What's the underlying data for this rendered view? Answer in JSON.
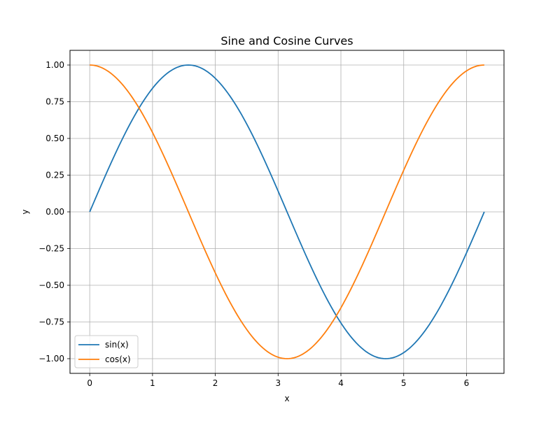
{
  "chart_data": {
    "type": "line",
    "title": "Sine and Cosine Curves",
    "xlabel": "x",
    "ylabel": "y",
    "xlim": [
      -0.314,
      6.597
    ],
    "ylim": [
      -1.1,
      1.1
    ],
    "xticks": [
      0,
      1,
      2,
      3,
      4,
      5,
      6
    ],
    "xtick_labels": [
      "0",
      "1",
      "2",
      "3",
      "4",
      "5",
      "6"
    ],
    "yticks": [
      -1.0,
      -0.75,
      -0.5,
      -0.25,
      0.0,
      0.25,
      0.5,
      0.75,
      1.0
    ],
    "ytick_labels": [
      "−1.00",
      "−0.75",
      "−0.50",
      "−0.25",
      "0.00",
      "0.25",
      "0.50",
      "0.75",
      "1.00"
    ],
    "grid": true,
    "legend_position": "lower-left",
    "x_range": [
      0,
      6.283
    ],
    "series": [
      {
        "name": "sin(x)",
        "color": "#1f77b4",
        "x": [
          0,
          0.785,
          1.571,
          2.356,
          3.142,
          3.927,
          4.712,
          5.498,
          6.283
        ],
        "y": [
          0,
          0.707,
          1.0,
          0.707,
          0,
          -0.707,
          -1.0,
          -0.707,
          0
        ]
      },
      {
        "name": "cos(x)",
        "color": "#ff7f0e",
        "x": [
          0,
          0.785,
          1.571,
          2.356,
          3.142,
          3.927,
          4.712,
          5.498,
          6.283
        ],
        "y": [
          1.0,
          0.707,
          0,
          -0.707,
          -1.0,
          -0.707,
          0,
          0.707,
          1.0
        ]
      }
    ]
  }
}
